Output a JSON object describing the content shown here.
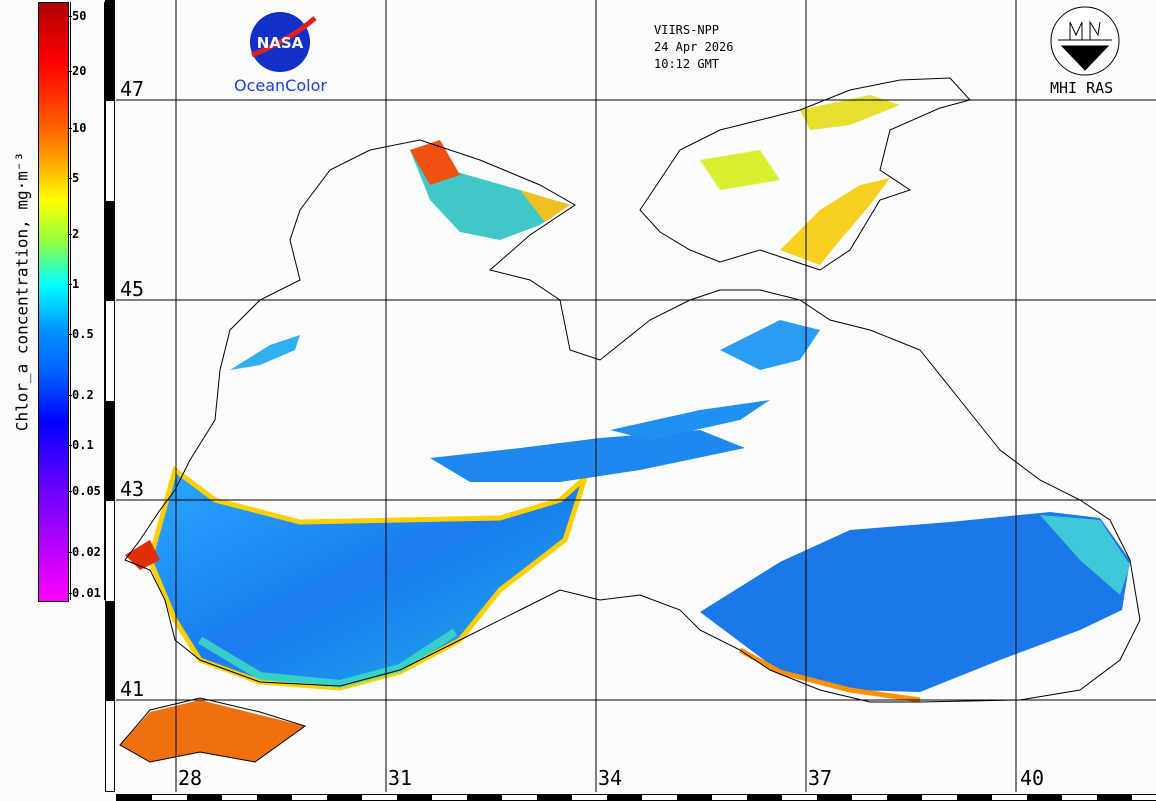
{
  "header": {
    "sensor": "VIIRS-NPP",
    "date": "24 Apr 2026",
    "time": "10:12 GMT"
  },
  "logos": {
    "nasa": "NASA",
    "oceancolor": "OceanColor",
    "mhi": "MHI RAS"
  },
  "colorbar": {
    "label": "Chlor_a concentration, mg·m⁻³",
    "ticks": [
      "50",
      "20",
      "10",
      "5",
      "2",
      "1",
      "0.5",
      "0.2",
      "0.1",
      "0.05",
      "0.02",
      "0.01"
    ]
  },
  "grid": {
    "lat_labels": [
      "47",
      "45",
      "43",
      "41"
    ],
    "lon_labels": [
      "28",
      "31",
      "34",
      "37",
      "40"
    ]
  },
  "colors": {
    "high": "#ff0000",
    "mid": "#ffff00",
    "low": "#0080ff",
    "coast": "#000000"
  }
}
